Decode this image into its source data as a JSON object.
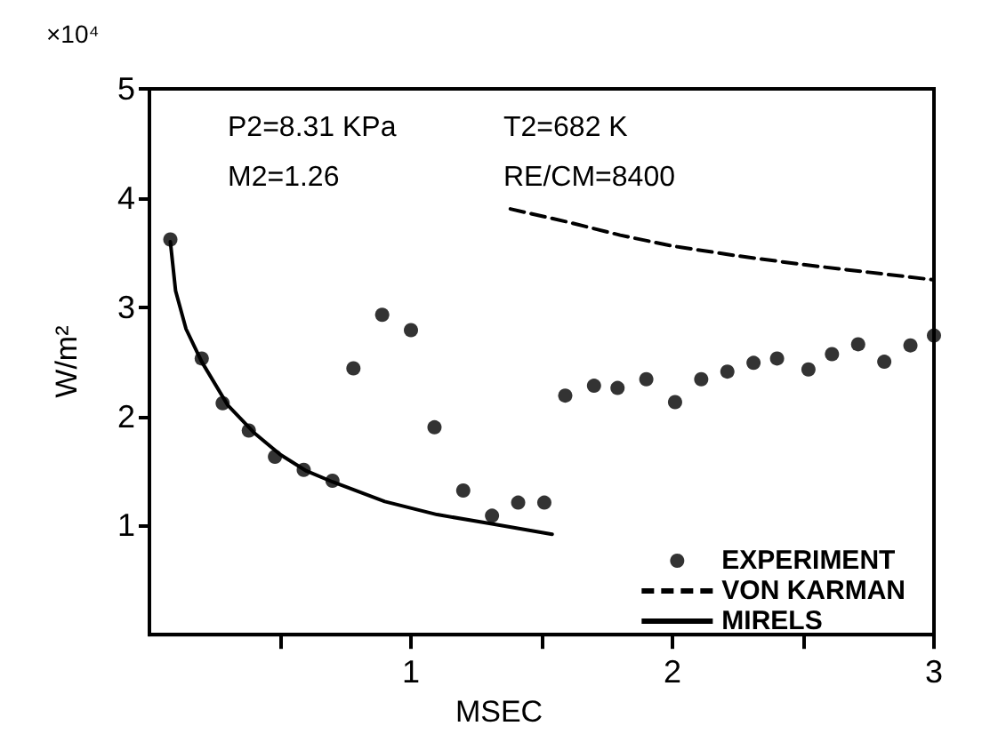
{
  "chart_data": {
    "type": "scatter",
    "ylabel": "W/m²",
    "xlabel": "MSEC",
    "annotations": [
      "×10⁴",
      "P2=8.31 KPa",
      "T2=682 K",
      "M2=1.26",
      "RE/CM=8400"
    ],
    "xlim": [
      0,
      3
    ],
    "xticks": [
      {
        "value": 0.5,
        "label": null
      },
      1,
      {
        "value": 1.5,
        "label": null
      },
      2,
      {
        "value": 2.5,
        "label": null
      },
      3
    ],
    "ylim": [
      0,
      5
    ],
    "yticks": [
      1,
      2,
      3,
      4,
      5
    ],
    "grid": false,
    "legend": "bottom right",
    "series": [
      {
        "name": "EXPERIMENT",
        "type": "scatter",
        "marker": "circle",
        "color": "#000000",
        "x": [
          0.08,
          0.2,
          0.28,
          0.38,
          0.48,
          0.59,
          0.7,
          0.78,
          0.89,
          1.0,
          1.09,
          1.2,
          1.31,
          1.41,
          1.51,
          1.59,
          1.7,
          1.79,
          1.9,
          2.01,
          2.11,
          2.21,
          2.31,
          2.4,
          2.52,
          2.61,
          2.71,
          2.81,
          2.91,
          3.0
        ],
        "values": [
          3.62,
          2.53,
          2.12,
          1.87,
          1.63,
          1.51,
          1.41,
          2.44,
          2.93,
          2.79,
          1.9,
          1.32,
          1.09,
          1.21,
          1.21,
          2.19,
          2.28,
          2.26,
          2.34,
          2.13,
          2.34,
          2.41,
          2.49,
          2.53,
          2.43,
          2.57,
          2.66,
          2.5,
          2.65,
          2.74
        ]
      },
      {
        "name": "VON KARMAN",
        "type": "line",
        "marker": "none",
        "line_style": "dashed",
        "color": "#000000",
        "x": [
          1.38,
          1.6,
          1.8,
          2.0,
          2.25,
          2.5,
          2.75,
          3.0
        ],
        "values": [
          3.9,
          3.78,
          3.66,
          3.56,
          3.47,
          3.39,
          3.32,
          3.25
        ]
      },
      {
        "name": "MIRELS",
        "type": "line",
        "marker": "none",
        "line_style": "solid",
        "color": "#000000",
        "x": [
          0.08,
          0.1,
          0.14,
          0.2,
          0.3,
          0.4,
          0.5,
          0.6,
          0.7,
          0.9,
          1.1,
          1.3,
          1.54
        ],
        "values": [
          3.6,
          3.15,
          2.8,
          2.5,
          2.1,
          1.85,
          1.65,
          1.5,
          1.4,
          1.22,
          1.1,
          1.02,
          0.92
        ]
      }
    ]
  }
}
